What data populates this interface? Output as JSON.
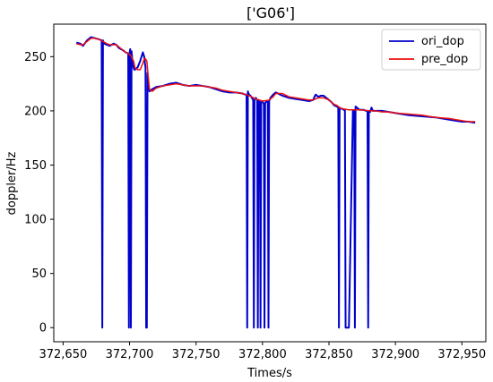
{
  "chart_data": {
    "type": "line",
    "title": "['G06']",
    "xlabel": "Times/s",
    "ylabel": "doppler/Hz",
    "xlim": [
      372643,
      372968
    ],
    "ylim": [
      -13,
      280
    ],
    "xticks": [
      372650,
      372700,
      372750,
      372800,
      372850,
      372900,
      372950
    ],
    "xtick_labels": [
      "372,650",
      "372,700",
      "372,750",
      "372,800",
      "372,850",
      "372,900",
      "372,950"
    ],
    "yticks": [
      0,
      50,
      100,
      150,
      200,
      250
    ],
    "ytick_labels": [
      "0",
      "50",
      "100",
      "150",
      "200",
      "250"
    ],
    "grid": false,
    "legend_position": "top-right",
    "series": [
      {
        "name": "ori_dop",
        "color": "#0000cc",
        "x": [
          372660,
          372663,
          372665,
          372668,
          372671,
          372674,
          372677,
          372679,
          372679.5,
          372680,
          372680.5,
          372681,
          372683,
          372685,
          372688,
          372690,
          372692,
          372695,
          372697,
          372699,
          372699.5,
          372700,
          372700.5,
          372701,
          372701.5,
          372702,
          372703,
          372703.5,
          372704,
          372706,
          372708,
          372710,
          372711,
          372712,
          372712.5,
          372713,
          372713.5,
          372714,
          372715,
          372717,
          372720,
          372725,
          372730,
          372735,
          372740,
          372745,
          372750,
          372755,
          372760,
          372765,
          372770,
          372775,
          372780,
          372785,
          372787,
          372788,
          372788.5,
          372789,
          372789.5,
          372790,
          372791,
          372792,
          372793,
          372793.5,
          372794,
          372795,
          372796,
          372796.5,
          372797,
          372798,
          372798.5,
          372799,
          372800,
          372801,
          372801.5,
          372802,
          372803,
          372804,
          372804.5,
          372805,
          372806,
          372808,
          372810,
          372815,
          372820,
          372825,
          372830,
          372835,
          372838,
          372840,
          372842,
          372844,
          372846,
          372848,
          372850,
          372852,
          372854,
          372856,
          372857,
          372857.5,
          372858,
          372859,
          372860,
          372861,
          372862,
          372862.5,
          372863,
          372864,
          372865,
          372868,
          372869,
          372869.5,
          372870,
          372871,
          372872,
          372873,
          372874,
          372876,
          372878,
          372879,
          372879.5,
          372880,
          372881,
          372882,
          372883,
          372885,
          372890,
          372895,
          372900,
          372910,
          372920,
          372930,
          372940,
          372950,
          372955,
          372960
        ],
        "y": [
          263,
          262,
          260,
          265,
          268,
          267,
          266,
          265,
          0,
          265,
          263,
          262,
          261,
          260,
          262,
          261,
          258,
          256,
          254,
          253,
          0,
          253,
          257,
          0,
          255,
          248,
          240,
          238,
          238,
          240,
          246,
          254,
          250,
          240,
          0,
          0,
          235,
          225,
          218,
          220,
          222,
          223,
          225,
          226,
          224,
          223,
          224,
          223,
          222,
          220,
          218,
          217,
          217,
          216,
          215,
          215,
          0,
          218,
          216,
          215,
          214,
          212,
          210,
          0,
          210,
          212,
          210,
          0,
          210,
          208,
          0,
          208,
          209,
          206,
          0,
          207,
          209,
          208,
          0,
          209,
          212,
          215,
          217,
          214,
          212,
          211,
          210,
          209,
          210,
          215,
          213,
          214,
          214,
          212,
          210,
          208,
          205,
          204,
          203,
          0,
          203,
          202,
          202,
          201,
          201,
          0,
          0,
          0,
          0,
          200,
          200,
          0,
          204,
          203,
          202,
          201,
          201,
          201,
          200,
          200,
          0,
          200,
          199,
          203,
          200,
          200,
          200,
          199,
          198,
          196,
          195,
          194,
          192,
          190,
          190,
          189
        ]
      },
      {
        "name": "pre_dop",
        "color": "#ee1111",
        "x": [
          372660,
          372663,
          372665,
          372668,
          372671,
          372674,
          372677,
          372680,
          372683,
          372685,
          372688,
          372690,
          372692,
          372695,
          372697,
          372699,
          372701,
          372703,
          372704,
          372706,
          372708,
          372710,
          372711,
          372712,
          372713,
          372714,
          372715,
          372717,
          372720,
          372725,
          372730,
          372735,
          372740,
          372745,
          372750,
          372755,
          372760,
          372765,
          372770,
          372775,
          372780,
          372785,
          372790,
          372795,
          372800,
          372805,
          372808,
          372810,
          372815,
          372820,
          372825,
          372830,
          372835,
          372838,
          372840,
          372842,
          372844,
          372846,
          372848,
          372850,
          372852,
          372854,
          372856,
          372858,
          372860,
          372865,
          372870,
          372875,
          372880,
          372885,
          372890,
          372895,
          372900,
          372910,
          372920,
          372930,
          372940,
          372950,
          372955,
          372960
        ],
        "y": [
          262,
          261,
          261,
          264,
          267,
          267,
          266,
          264,
          262,
          261,
          261,
          261,
          259,
          256,
          254,
          253,
          251,
          246,
          240,
          238,
          238,
          244,
          248,
          248,
          246,
          232,
          220,
          218,
          221,
          223,
          224,
          225,
          224,
          223,
          223,
          223,
          222,
          221,
          219,
          218,
          217,
          216,
          214,
          211,
          209,
          210,
          213,
          216,
          216,
          213,
          212,
          211,
          210,
          210,
          211,
          212,
          212,
          212,
          211,
          210,
          208,
          206,
          205,
          203,
          202,
          201,
          201,
          201,
          200,
          200,
          199,
          199,
          198,
          197,
          196,
          194,
          193,
          191,
          190,
          190
        ]
      }
    ]
  }
}
